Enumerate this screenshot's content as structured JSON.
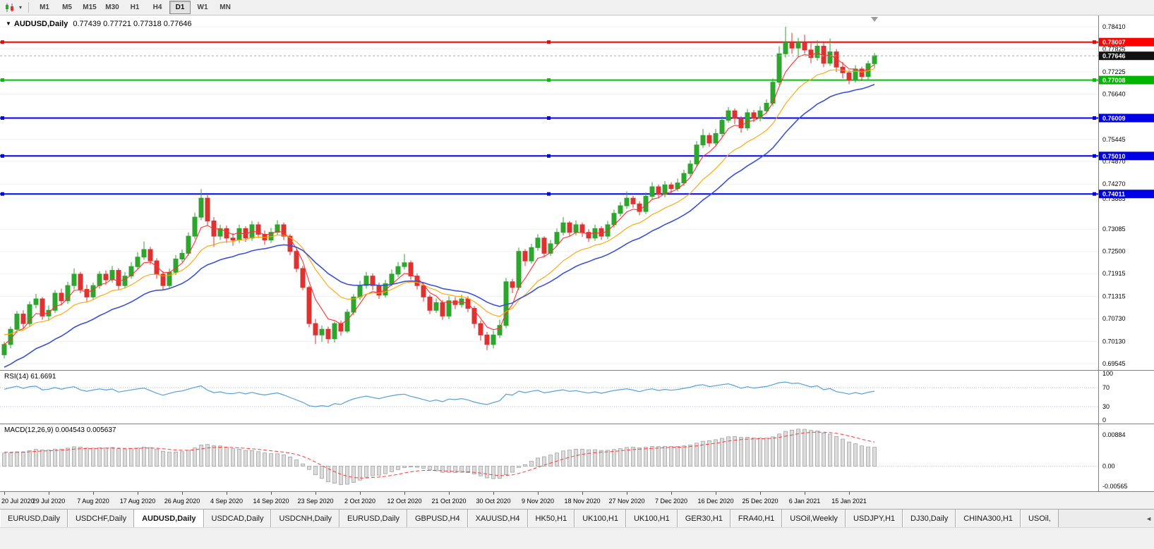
{
  "toolbar": {
    "timeframes": [
      {
        "label": "M1",
        "active": false
      },
      {
        "label": "M5",
        "active": false
      },
      {
        "label": "M15",
        "active": false
      },
      {
        "label": "M30",
        "active": false
      },
      {
        "label": "H1",
        "active": false
      },
      {
        "label": "H4",
        "active": false
      },
      {
        "label": "D1",
        "active": true
      },
      {
        "label": "W1",
        "active": false
      },
      {
        "label": "MN",
        "active": false
      }
    ],
    "dropdown_icon": "▾"
  },
  "chart": {
    "title": {
      "marker": "▼",
      "symbol_period": "AUDUSD,Daily",
      "ohlc": "0.77439 0.77721 0.77318 0.77646"
    },
    "hlines": [
      {
        "price": 0.78007,
        "color": "#FF0000"
      },
      {
        "price": 0.77008,
        "color": "#00C300"
      },
      {
        "price": 0.76009,
        "color": "#0000FF"
      },
      {
        "price": 0.7501,
        "color": "#0000FF"
      },
      {
        "price": 0.74011,
        "color": "#0000FF"
      }
    ],
    "badges": [
      {
        "text": "0.78007",
        "price": 0.78007,
        "bg": "#FF0000"
      },
      {
        "text": "0.77646",
        "price": 0.77646,
        "bg": "#111111"
      },
      {
        "text": "0.77008",
        "price": 0.77008,
        "bg": "#00B400"
      },
      {
        "text": "0.76009",
        "price": 0.76009,
        "bg": "#0000E6"
      },
      {
        "text": "0.75010",
        "price": 0.7501,
        "bg": "#0000E6"
      },
      {
        "text": "0.74011",
        "price": 0.74011,
        "bg": "#0000E6"
      }
    ],
    "current_price": {
      "price": 0.77646
    }
  },
  "indicators": {
    "rsi": {
      "label": "RSI(14) 61.6691",
      "value": "61.6691",
      "color": "#56A0D8",
      "axis_labels": [
        "100",
        "70",
        "30",
        "0"
      ],
      "dotted_levels": [
        70,
        30
      ],
      "period": 14,
      "seed_avg_gain": 0.0018,
      "seed_avg_loss": 0.0009
    },
    "macd": {
      "label": "MACD(12,26,9) 0.004543 0.005637",
      "values": "0.004543 0.005637",
      "axis_labels": [
        "0.00884",
        "0.00",
        "-0.00565"
      ],
      "histogram_fill": "#DCDCDC",
      "histogram_stroke": "#8C8C8C",
      "signal_color": "#FF3A3A"
    }
  },
  "dates": [
    "20 Jul 2020",
    "29 Jul 2020",
    "7 Aug 2020",
    "17 Aug 2020",
    "26 Aug 2020",
    "4 Sep 2020",
    "14 Sep 2020",
    "23 Sep 2020",
    "2 Oct 2020",
    "12 Oct 2020",
    "21 Oct 2020",
    "30 Oct 2020",
    "9 Nov 2020",
    "18 Nov 2020",
    "27 Nov 2020",
    "7 Dec 2020",
    "16 Dec 2020",
    "25 Dec 2020",
    "6 Jan 2021",
    "15 Jan 2021"
  ],
  "tabs": {
    "scroll_icon": "◄",
    "items": [
      {
        "label": "EURUSD,Daily",
        "active": false
      },
      {
        "label": "USDCHF,Daily",
        "active": false
      },
      {
        "label": "AUDUSD,Daily",
        "active": true
      },
      {
        "label": "USDCAD,Daily",
        "active": false
      },
      {
        "label": "USDCNH,Daily",
        "active": false
      },
      {
        "label": "EURUSD,Daily",
        "active": false
      },
      {
        "label": "GBPUSD,H4",
        "active": false
      },
      {
        "label": "XAUUSD,H4",
        "active": false
      },
      {
        "label": "HK50,H1",
        "active": false
      },
      {
        "label": "UK100,H1",
        "active": false
      },
      {
        "label": "UK100,H1",
        "active": false
      },
      {
        "label": "GER30,H1",
        "active": false
      },
      {
        "label": "FRA40,H1",
        "active": false
      },
      {
        "label": "USOil,Weekly",
        "active": false
      },
      {
        "label": "USDJPY,H1",
        "active": false
      },
      {
        "label": "DJ30,Daily",
        "active": false
      },
      {
        "label": "CHINA300,H1",
        "active": false
      },
      {
        "label": "USOil,",
        "active": false
      }
    ]
  },
  "chart_data": {
    "type": "candlestick",
    "symbol": "AUDUSD",
    "period": "Daily",
    "colors": {
      "up": "#2CA62C",
      "down": "#E03131"
    },
    "price_axis": {
      "top": 0.7841,
      "bottom": 0.69545,
      "labels": [
        "0.78410",
        "0.77825",
        "0.77225",
        "0.76640",
        "0.75445",
        "0.74870",
        "0.74270",
        "0.73885",
        "0.73085",
        "0.72500",
        "0.71915",
        "0.71315",
        "0.70730",
        "0.70130",
        "0.69545"
      ]
    },
    "moving_averages": [
      {
        "name": "ma-fast-red",
        "color": "#FF3030",
        "alpha": 0.33,
        "seed": null,
        "width": 1.1
      },
      {
        "name": "ma-medium-orange",
        "color": "#FFA400",
        "alpha": 0.14,
        "seed": 0.7035,
        "width": 1.1
      },
      {
        "name": "ma-slow-blue",
        "color": "#3A52D2",
        "alpha": 0.08,
        "seed": 0.694,
        "width": 1.6
      }
    ],
    "candles": [
      [
        0.6978,
        0.7012,
        0.6968,
        0.7005
      ],
      [
        0.7005,
        0.7052,
        0.6995,
        0.7045
      ],
      [
        0.7045,
        0.7093,
        0.7035,
        0.7085
      ],
      [
        0.7085,
        0.7095,
        0.7048,
        0.706
      ],
      [
        0.706,
        0.7118,
        0.7052,
        0.711
      ],
      [
        0.711,
        0.7138,
        0.71,
        0.7125
      ],
      [
        0.7125,
        0.713,
        0.707,
        0.708
      ],
      [
        0.708,
        0.7108,
        0.7068,
        0.7095
      ],
      [
        0.7095,
        0.7148,
        0.7088,
        0.714
      ],
      [
        0.714,
        0.7152,
        0.7108,
        0.712
      ],
      [
        0.712,
        0.717,
        0.7112,
        0.716
      ],
      [
        0.716,
        0.7205,
        0.715,
        0.719
      ],
      [
        0.719,
        0.7196,
        0.714,
        0.715
      ],
      [
        0.715,
        0.7162,
        0.7118,
        0.713
      ],
      [
        0.713,
        0.7168,
        0.7122,
        0.716
      ],
      [
        0.716,
        0.7198,
        0.7152,
        0.719
      ],
      [
        0.719,
        0.72,
        0.7162,
        0.7175
      ],
      [
        0.7175,
        0.7212,
        0.7168,
        0.72
      ],
      [
        0.72,
        0.7206,
        0.715,
        0.716
      ],
      [
        0.716,
        0.7195,
        0.7152,
        0.7185
      ],
      [
        0.7185,
        0.7222,
        0.7178,
        0.721
      ],
      [
        0.721,
        0.7248,
        0.7202,
        0.7235
      ],
      [
        0.7235,
        0.7276,
        0.7228,
        0.7255
      ],
      [
        0.7255,
        0.7262,
        0.7215,
        0.7225
      ],
      [
        0.7225,
        0.7232,
        0.7178,
        0.719
      ],
      [
        0.719,
        0.7198,
        0.7148,
        0.716
      ],
      [
        0.716,
        0.7205,
        0.7152,
        0.7195
      ],
      [
        0.7195,
        0.724,
        0.7188,
        0.723
      ],
      [
        0.723,
        0.7255,
        0.7222,
        0.7245
      ],
      [
        0.7245,
        0.73,
        0.7238,
        0.729
      ],
      [
        0.729,
        0.7352,
        0.7282,
        0.734
      ],
      [
        0.734,
        0.7414,
        0.7332,
        0.739
      ],
      [
        0.739,
        0.7398,
        0.7318,
        0.733
      ],
      [
        0.733,
        0.734,
        0.7262,
        0.729
      ],
      [
        0.729,
        0.732,
        0.728,
        0.731
      ],
      [
        0.731,
        0.7318,
        0.7272,
        0.7285
      ],
      [
        0.7285,
        0.7298,
        0.7265,
        0.728
      ],
      [
        0.728,
        0.732,
        0.7272,
        0.731
      ],
      [
        0.731,
        0.7316,
        0.7275,
        0.7285
      ],
      [
        0.7285,
        0.733,
        0.7278,
        0.732
      ],
      [
        0.732,
        0.7328,
        0.7285,
        0.7295
      ],
      [
        0.7295,
        0.7305,
        0.7268,
        0.728
      ],
      [
        0.728,
        0.7312,
        0.7272,
        0.73
      ],
      [
        0.73,
        0.7332,
        0.7292,
        0.732
      ],
      [
        0.732,
        0.7326,
        0.728,
        0.729
      ],
      [
        0.729,
        0.7295,
        0.724,
        0.725
      ],
      [
        0.725,
        0.7255,
        0.7195,
        0.7205
      ],
      [
        0.7205,
        0.7212,
        0.7148,
        0.7155
      ],
      [
        0.7155,
        0.716,
        0.705,
        0.706
      ],
      [
        0.706,
        0.7072,
        0.7006,
        0.703
      ],
      [
        0.703,
        0.7055,
        0.7012,
        0.7045
      ],
      [
        0.7045,
        0.7052,
        0.7008,
        0.702
      ],
      [
        0.702,
        0.7065,
        0.701,
        0.706
      ],
      [
        0.706,
        0.7068,
        0.7028,
        0.704
      ],
      [
        0.704,
        0.7098,
        0.7035,
        0.709
      ],
      [
        0.709,
        0.7138,
        0.7082,
        0.713
      ],
      [
        0.713,
        0.7172,
        0.7122,
        0.716
      ],
      [
        0.716,
        0.7196,
        0.7152,
        0.7185
      ],
      [
        0.7185,
        0.7192,
        0.7148,
        0.716
      ],
      [
        0.716,
        0.7168,
        0.7125,
        0.7135
      ],
      [
        0.7135,
        0.7175,
        0.7128,
        0.7165
      ],
      [
        0.7165,
        0.7202,
        0.7158,
        0.719
      ],
      [
        0.719,
        0.7222,
        0.7182,
        0.721
      ],
      [
        0.721,
        0.7243,
        0.7202,
        0.722
      ],
      [
        0.722,
        0.7226,
        0.7175,
        0.7185
      ],
      [
        0.7185,
        0.7192,
        0.715,
        0.716
      ],
      [
        0.716,
        0.7166,
        0.7118,
        0.713
      ],
      [
        0.713,
        0.7136,
        0.7085,
        0.7095
      ],
      [
        0.7095,
        0.7126,
        0.7088,
        0.7115
      ],
      [
        0.7115,
        0.7122,
        0.707,
        0.708
      ],
      [
        0.708,
        0.7132,
        0.7072,
        0.712
      ],
      [
        0.712,
        0.713,
        0.7098,
        0.711
      ],
      [
        0.711,
        0.7136,
        0.7102,
        0.7125
      ],
      [
        0.7125,
        0.7132,
        0.709,
        0.71
      ],
      [
        0.71,
        0.7106,
        0.7048,
        0.706
      ],
      [
        0.706,
        0.7068,
        0.7015,
        0.703
      ],
      [
        0.703,
        0.7038,
        0.699,
        0.7005
      ],
      [
        0.7005,
        0.7042,
        0.6995,
        0.703
      ],
      [
        0.703,
        0.707,
        0.7022,
        0.7055
      ],
      [
        0.7055,
        0.718,
        0.7048,
        0.717
      ],
      [
        0.717,
        0.7178,
        0.714,
        0.7155
      ],
      [
        0.7155,
        0.726,
        0.7148,
        0.725
      ],
      [
        0.725,
        0.7256,
        0.7212,
        0.7225
      ],
      [
        0.7225,
        0.727,
        0.7218,
        0.726
      ],
      [
        0.726,
        0.7295,
        0.7252,
        0.7285
      ],
      [
        0.7285,
        0.729,
        0.7235,
        0.7245
      ],
      [
        0.7245,
        0.728,
        0.7238,
        0.727
      ],
      [
        0.727,
        0.731,
        0.7262,
        0.73
      ],
      [
        0.73,
        0.734,
        0.7292,
        0.7325
      ],
      [
        0.7325,
        0.733,
        0.729,
        0.73
      ],
      [
        0.73,
        0.7332,
        0.7292,
        0.732
      ],
      [
        0.732,
        0.7326,
        0.7288,
        0.73
      ],
      [
        0.73,
        0.7308,
        0.7275,
        0.7285
      ],
      [
        0.7285,
        0.732,
        0.7278,
        0.731
      ],
      [
        0.731,
        0.7316,
        0.728,
        0.729
      ],
      [
        0.729,
        0.733,
        0.7282,
        0.732
      ],
      [
        0.732,
        0.736,
        0.7312,
        0.735
      ],
      [
        0.735,
        0.738,
        0.7342,
        0.737
      ],
      [
        0.737,
        0.7408,
        0.7362,
        0.739
      ],
      [
        0.739,
        0.7396,
        0.7365,
        0.7375
      ],
      [
        0.7375,
        0.7382,
        0.7345,
        0.7355
      ],
      [
        0.7355,
        0.7405,
        0.7348,
        0.7395
      ],
      [
        0.7395,
        0.7432,
        0.7388,
        0.742
      ],
      [
        0.742,
        0.7426,
        0.739,
        0.74
      ],
      [
        0.74,
        0.7435,
        0.7392,
        0.7425
      ],
      [
        0.7425,
        0.7432,
        0.7402,
        0.7415
      ],
      [
        0.7415,
        0.7442,
        0.7408,
        0.743
      ],
      [
        0.743,
        0.7465,
        0.7422,
        0.7455
      ],
      [
        0.7455,
        0.749,
        0.7448,
        0.748
      ],
      [
        0.748,
        0.754,
        0.7472,
        0.753
      ],
      [
        0.753,
        0.7572,
        0.7522,
        0.7555
      ],
      [
        0.7555,
        0.7562,
        0.7525,
        0.7535
      ],
      [
        0.7535,
        0.7572,
        0.7528,
        0.756
      ],
      [
        0.756,
        0.7605,
        0.7552,
        0.7595
      ],
      [
        0.7595,
        0.763,
        0.7588,
        0.762
      ],
      [
        0.762,
        0.7626,
        0.7585,
        0.76
      ],
      [
        0.76,
        0.7606,
        0.7562,
        0.7575
      ],
      [
        0.7575,
        0.7625,
        0.7568,
        0.7615
      ],
      [
        0.7615,
        0.7622,
        0.759,
        0.76
      ],
      [
        0.76,
        0.7632,
        0.7592,
        0.762
      ],
      [
        0.762,
        0.765,
        0.7612,
        0.764
      ],
      [
        0.764,
        0.7705,
        0.7632,
        0.7695
      ],
      [
        0.7695,
        0.779,
        0.7688,
        0.777
      ],
      [
        0.777,
        0.7841,
        0.776,
        0.78
      ],
      [
        0.78,
        0.7825,
        0.777,
        0.7785
      ],
      [
        0.7785,
        0.7812,
        0.7762,
        0.78
      ],
      [
        0.78,
        0.782,
        0.777,
        0.778
      ],
      [
        0.778,
        0.7798,
        0.7745,
        0.776
      ],
      [
        0.776,
        0.7805,
        0.7752,
        0.779
      ],
      [
        0.779,
        0.78,
        0.7735,
        0.7745
      ],
      [
        0.7745,
        0.781,
        0.7738,
        0.7775
      ],
      [
        0.7775,
        0.7782,
        0.7722,
        0.7735
      ],
      [
        0.7735,
        0.7748,
        0.7705,
        0.772
      ],
      [
        0.772,
        0.7726,
        0.769,
        0.77
      ],
      [
        0.77,
        0.774,
        0.7694,
        0.773
      ],
      [
        0.773,
        0.7736,
        0.7698,
        0.771
      ],
      [
        0.771,
        0.7752,
        0.7702,
        0.7744
      ],
      [
        0.7744,
        0.7772,
        0.7732,
        0.7765
      ]
    ]
  }
}
